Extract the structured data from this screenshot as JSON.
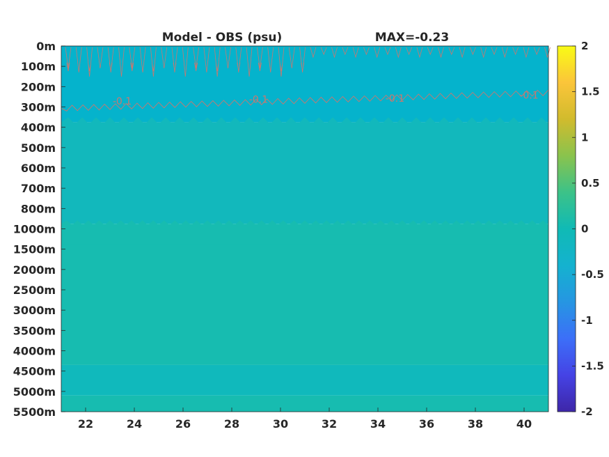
{
  "chart_data": {
    "type": "heatmap",
    "title_left": "Model - OBS (psu)",
    "title_right": "MAX=-0.23",
    "xlabel": "",
    "ylabel": "",
    "xlim": [
      21,
      41
    ],
    "x_ticks": [
      22,
      24,
      26,
      28,
      30,
      32,
      34,
      36,
      38,
      40
    ],
    "y_axis": {
      "reversed": true,
      "tick_labels": [
        "0m",
        "100m",
        "200m",
        "300m",
        "400m",
        "500m",
        "600m",
        "700m",
        "800m",
        "1000m",
        "1500m",
        "2000m",
        "2500m",
        "3000m",
        "3500m",
        "4000m",
        "4500m",
        "5000m",
        "5500m"
      ]
    },
    "colorbar": {
      "colormap": "parula",
      "clim": [
        -2,
        2
      ],
      "ticks": [
        2,
        1.5,
        1,
        0.5,
        0,
        -0.5,
        -1,
        -1.5,
        -2
      ],
      "tick_labels": [
        "2",
        "1.5",
        "1",
        "0.5",
        "0",
        "-0.5",
        "-1",
        "-1.5",
        "-2"
      ]
    },
    "contour_labels": [
      "-0.1",
      "-0.1",
      "-0.1",
      "-0.1"
    ],
    "contour_label_positions": [
      {
        "x": 23.5,
        "depth": "275m"
      },
      {
        "x": 29.1,
        "depth": "265m"
      },
      {
        "x": 34.7,
        "depth": "260m"
      },
      {
        "x": 40.2,
        "depth": "245m"
      }
    ],
    "bands": [
      {
        "from_depth": "0m",
        "to_depth": "375m",
        "value": -0.15,
        "color": "#05b3cc"
      },
      {
        "from_depth": "375m",
        "to_depth": "950m",
        "value": -0.05,
        "color": "#12b8bc"
      },
      {
        "from_depth": "950m",
        "to_depth": "4350m",
        "value": 0.0,
        "color": "#17bcb0"
      },
      {
        "from_depth": "4350m",
        "to_depth": "5100m",
        "value": -0.05,
        "color": "#10b9bc"
      },
      {
        "from_depth": "5100m",
        "to_depth": "5500m",
        "value": 0.0,
        "color": "#17bcb0"
      }
    ],
    "contour_color": "#c97870"
  }
}
